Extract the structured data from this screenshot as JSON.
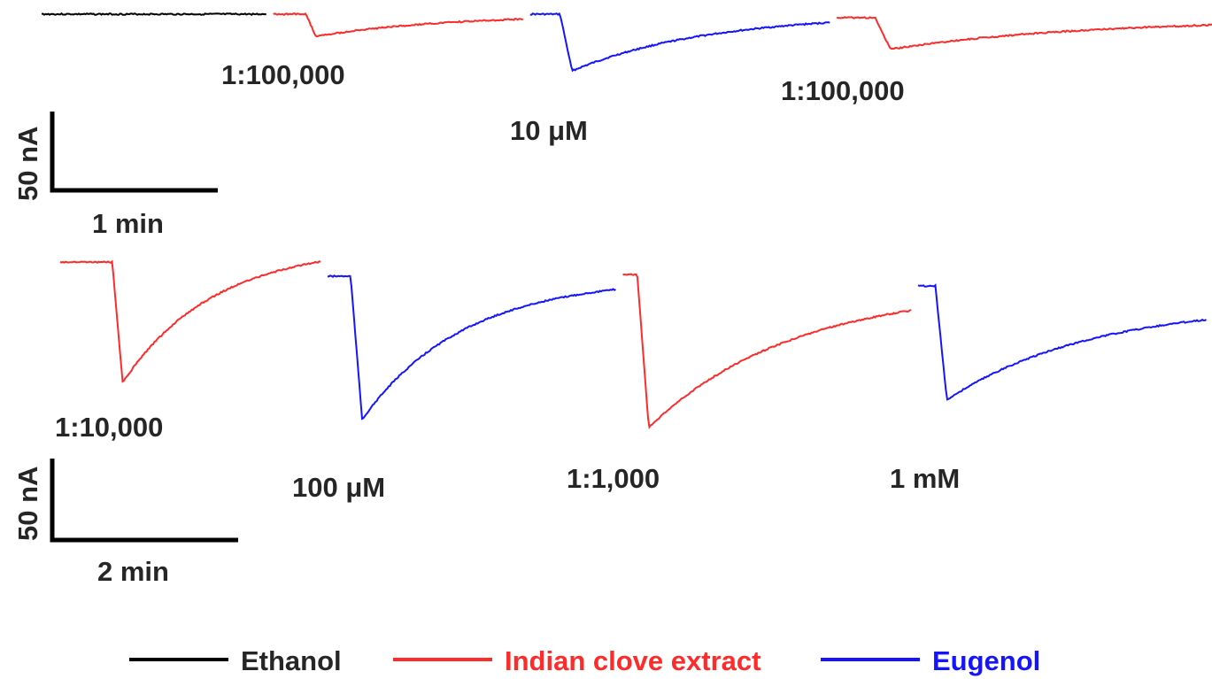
{
  "chart_data": {
    "type": "line",
    "colors": {
      "Ethanol": "#000000",
      "Indian clove extract": "#ff2a2a",
      "Eugenol": "#1414ff"
    },
    "legend": {
      "placement": "bottom",
      "entries": [
        {
          "name": "Ethanol",
          "color": "#000000"
        },
        {
          "name": "Indian clove extract",
          "color": "#ff2a2a"
        },
        {
          "name": "Eugenol",
          "color": "#1414ff"
        }
      ]
    },
    "panels": [
      {
        "id": "top",
        "scale_bar": {
          "current": "50 nA",
          "time": "1 min"
        },
        "segments": [
          {
            "series": "Ethanol",
            "label": "",
            "duration_min": 1.35,
            "peak_nA": 0,
            "onset_frac": 1.0,
            "tau": 1.0
          },
          {
            "series": "Indian clove extract",
            "label": "1:100,000",
            "duration_min": 1.5,
            "peak_nA": -14,
            "onset_frac": 0.13,
            "tau": 0.55
          },
          {
            "series": "Eugenol",
            "label": "10 μM",
            "duration_min": 1.8,
            "peak_nA": -36,
            "onset_frac": 0.1,
            "tau": 0.45
          },
          {
            "series": "Indian clove extract",
            "label": "1:100,000",
            "duration_min": 2.3,
            "peak_nA": -20,
            "onset_frac": 0.1,
            "tau": 0.5
          }
        ]
      },
      {
        "id": "bottom",
        "scale_bar": {
          "current": "50 nA",
          "time": "2 min"
        },
        "segments": [
          {
            "series": "Indian clove extract",
            "label": "1:10,000",
            "duration_min": 2.8,
            "peak_nA": -74,
            "onset_frac": 0.2,
            "tau": 0.35
          },
          {
            "series": "Eugenol",
            "label": "100 μM",
            "duration_min": 3.1,
            "peak_nA": -88,
            "onset_frac": 0.08,
            "tau": 0.35
          },
          {
            "series": "Indian clove extract",
            "label": "1:1,000",
            "duration_min": 3.1,
            "peak_nA": -94,
            "onset_frac": 0.05,
            "tau": 0.5
          },
          {
            "series": "Eugenol",
            "label": "1 mM",
            "duration_min": 3.1,
            "peak_nA": -70,
            "onset_frac": 0.06,
            "tau": 0.5
          }
        ]
      }
    ]
  }
}
